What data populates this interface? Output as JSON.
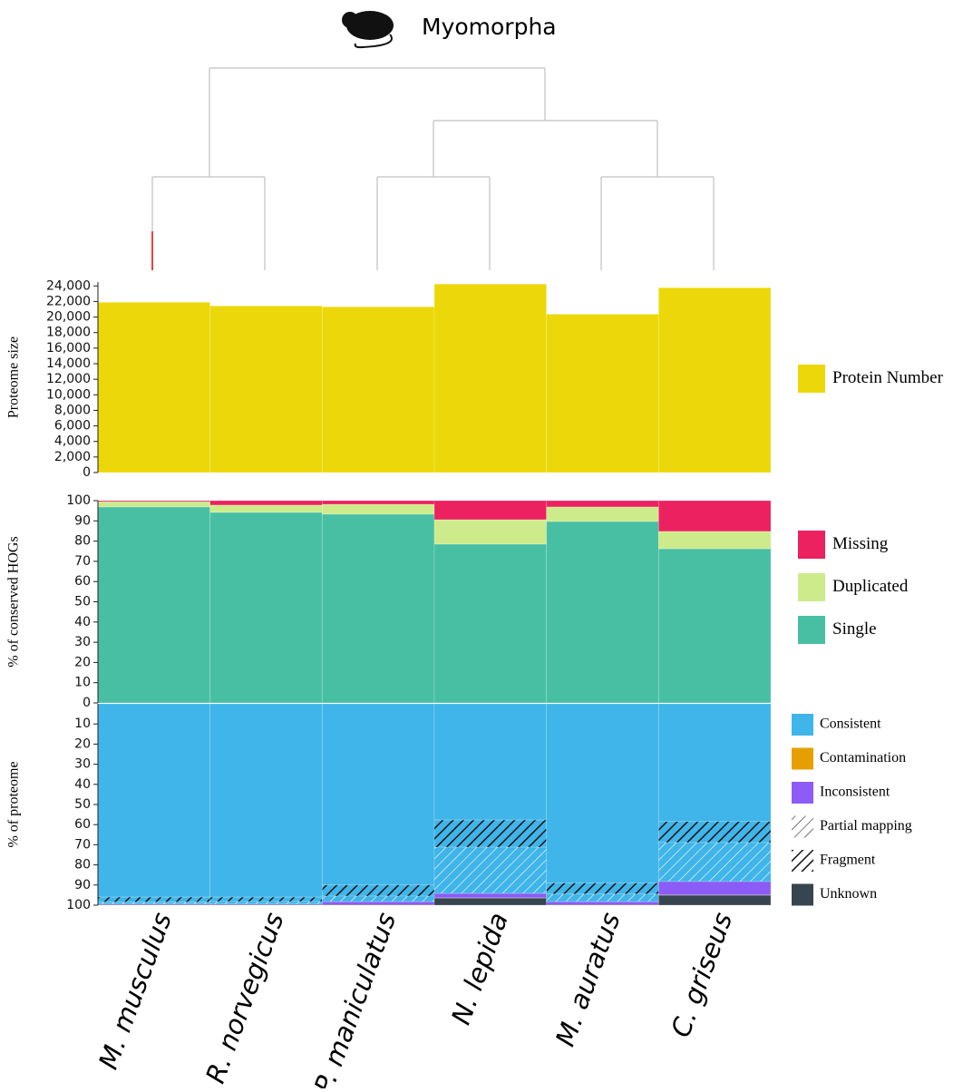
{
  "title": "Myomorpha",
  "chart_data": [
    {
      "type": "bar",
      "y_label": "Proteome size",
      "series": [
        {
          "name": "Protein Number",
          "color": "#ecd80a",
          "values": [
            21900,
            21430,
            21310,
            24240,
            20370,
            23770
          ]
        }
      ],
      "ylim": [
        0,
        24500
      ],
      "yticks": [
        0,
        {
          "value": 2000,
          "label": "2,000"
        },
        {
          "value": 4000,
          "label": "4,000"
        },
        {
          "value": 6000,
          "label": "6,000"
        },
        {
          "value": 8000,
          "label": "8,000"
        },
        {
          "value": 10000,
          "label": "10,000"
        },
        {
          "value": 12000,
          "label": "12,000"
        },
        {
          "value": 14000,
          "label": "14,000"
        },
        {
          "value": 16000,
          "label": "16,000"
        },
        {
          "value": 18000,
          "label": "18,000"
        },
        {
          "value": 20000,
          "label": "20,000"
        },
        {
          "value": 22000,
          "label": "22,000"
        },
        {
          "value": 24000,
          "label": "24,000"
        }
      ]
    },
    {
      "type": "stacked_bar",
      "y_label": "% of conserved HOGs",
      "series": [
        {
          "name": "Single",
          "color": "#48bfa3",
          "values": [
            96.9,
            94.2,
            93.3,
            78.5,
            89.7,
            76.2
          ]
        },
        {
          "name": "Duplicated",
          "color": "#cdeb8b",
          "values": [
            2.6,
            3.6,
            4.9,
            12.1,
            7.2,
            8.6
          ]
        },
        {
          "name": "Missing",
          "color": "#ec2160",
          "values": [
            0.5,
            2.2,
            1.8,
            9.4,
            3.1,
            15.2
          ]
        }
      ],
      "ylim": [
        0,
        100
      ],
      "yticks": [
        0,
        10,
        20,
        30,
        40,
        50,
        60,
        70,
        80,
        90,
        100
      ],
      "legend_reversed": true
    },
    {
      "type": "stacked_bar",
      "y_label": "% of proteome",
      "inverted": true,
      "categories": [
        "M. musculus",
        "R. norvegicus",
        "P. maniculatus",
        "N. lepida",
        "M. auratus",
        "C. griseus"
      ],
      "series": [
        {
          "name": "Consistent",
          "color": "#3fb5e9",
          "values": [
            96,
            96,
            90,
            57.7,
            89,
            58.5
          ]
        },
        {
          "name": "Contamination",
          "color": "#e69f00",
          "values": [
            0,
            0,
            0,
            0.1,
            0,
            0.1
          ]
        },
        {
          "name": "Inconsistent",
          "color": "#8b5cf6",
          "values": [
            0.3,
            0.3,
            1.5,
            2.2,
            1.5,
            6.7
          ]
        },
        {
          "name": "Partial mapping",
          "color": "#222222",
          "hatch": "light",
          "values": [
            1.0,
            1.3,
            2.8,
            23,
            3.8,
            19.4
          ]
        },
        {
          "name": "Fragment",
          "color": "#111111",
          "hatch": "dense",
          "values": [
            2.5,
            2.2,
            5.5,
            13.5,
            5.5,
            10.4
          ]
        },
        {
          "name": "Unknown",
          "color": "#36454f",
          "values": [
            0.2,
            0.2,
            0.2,
            3.5,
            0.2,
            4.9
          ]
        }
      ],
      "stack_order": [
        0,
        4,
        3,
        2,
        1,
        5
      ],
      "ylim": [
        0,
        100
      ],
      "yticks": [
        10,
        20,
        30,
        40,
        50,
        60,
        70,
        80,
        90,
        100
      ]
    }
  ]
}
